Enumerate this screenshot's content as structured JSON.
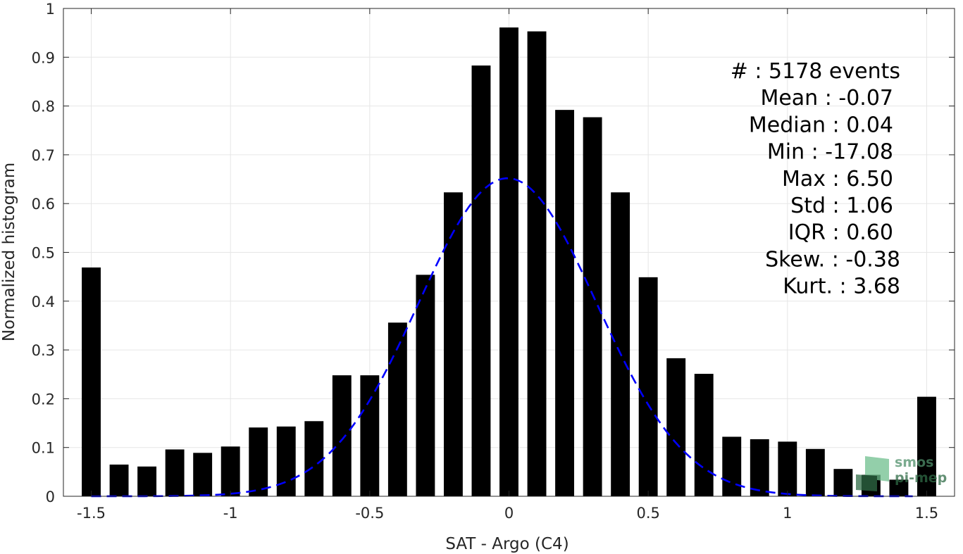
{
  "chart_data": {
    "type": "bar",
    "xlabel": "SAT - Argo (C4)",
    "ylabel": "Normalized histogram",
    "xlim": [
      -1.6,
      1.6
    ],
    "ylim": [
      0,
      1
    ],
    "grid": true,
    "xticks": [
      -1.5,
      -1,
      -0.5,
      0,
      0.5,
      1,
      1.5
    ],
    "xtick_labels": [
      "-1.5",
      "-1",
      "-0.5",
      "0",
      "0.5",
      "1",
      "1.5"
    ],
    "yticks": [
      0,
      0.1,
      0.2,
      0.3,
      0.4,
      0.5,
      0.6,
      0.7,
      0.8,
      0.9,
      1
    ],
    "ytick_labels": [
      "0",
      "0.1",
      "0.2",
      "0.3",
      "0.4",
      "0.5",
      "0.6",
      "0.7",
      "0.8",
      "0.9",
      "1"
    ],
    "bar_width": 0.068,
    "bars": {
      "x": [
        -1.5,
        -1.4,
        -1.3,
        -1.2,
        -1.1,
        -1.0,
        -0.9,
        -0.8,
        -0.7,
        -0.6,
        -0.5,
        -0.4,
        -0.3,
        -0.2,
        -0.1,
        0.0,
        0.1,
        0.2,
        0.3,
        0.4,
        0.5,
        0.6,
        0.7,
        0.8,
        0.9,
        1.0,
        1.1,
        1.2,
        1.3,
        1.4,
        1.5
      ],
      "values": [
        0.469,
        0.065,
        0.061,
        0.096,
        0.089,
        0.102,
        0.141,
        0.143,
        0.154,
        0.248,
        0.248,
        0.356,
        0.454,
        0.623,
        0.883,
        0.961,
        0.953,
        0.792,
        0.777,
        0.623,
        0.449,
        0.283,
        0.251,
        0.122,
        0.117,
        0.112,
        0.097,
        0.056,
        0.044,
        0.034,
        0.204
      ],
      "color": "#000000"
    },
    "fit_curve": {
      "type": "gaussian",
      "mean": -0.005,
      "sigma": 0.32,
      "peak": 0.652,
      "x_range": [
        -1.5,
        1.45
      ],
      "color": "#0000ff",
      "style": "dashed"
    },
    "annotations": [
      "#  : 5178 events",
      "Mean : -0.07",
      "Median : 0.04",
      "Min : -17.08",
      "Max : 6.50",
      "Std : 1.06",
      "IQR : 0.60",
      "Skew. : -0.38",
      "Kurt. : 3.68"
    ]
  },
  "logo": {
    "line1": "smos",
    "line2": "pi-mep"
  }
}
